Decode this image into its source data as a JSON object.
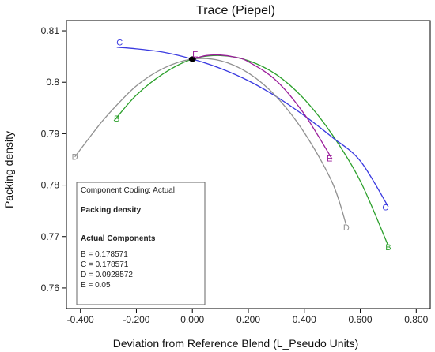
{
  "chart_data": {
    "type": "line",
    "title": "Trace (Piepel)",
    "xlabel": "Deviation from Reference Blend (L_Pseudo Units)",
    "ylabel": "Packing density",
    "xlim": [
      -0.45,
      0.85
    ],
    "ylim": [
      0.756,
      0.812
    ],
    "x_ticks": [
      -0.4,
      -0.2,
      0.0,
      0.2,
      0.4,
      0.6,
      0.8
    ],
    "x_tick_labels": [
      "-0.400",
      "-0.200",
      "0.000",
      "0.200",
      "0.400",
      "0.600",
      "0.800"
    ],
    "y_ticks": [
      0.76,
      0.77,
      0.78,
      0.79,
      0.8,
      0.81
    ],
    "y_tick_labels": [
      "0.76",
      "0.77",
      "0.78",
      "0.79",
      "0.8",
      "0.81"
    ],
    "grid": false,
    "reference_point": {
      "x": 0.0,
      "y": 0.8045
    },
    "series": [
      {
        "name": "B",
        "color": "#2ca02c",
        "x": [
          -0.28,
          -0.2,
          -0.1,
          0.0,
          0.1,
          0.2,
          0.3,
          0.4,
          0.5,
          0.6,
          0.7
        ],
        "y": [
          0.7925,
          0.7975,
          0.8018,
          0.8045,
          0.8052,
          0.8042,
          0.8015,
          0.7967,
          0.7898,
          0.7808,
          0.7682
        ],
        "marker_labels": [
          {
            "x": -0.27,
            "y": 0.793
          },
          {
            "x": 0.7,
            "y": 0.768
          }
        ]
      },
      {
        "name": "C",
        "color": "#3a3ae0",
        "x": [
          -0.27,
          -0.2,
          -0.1,
          0.0,
          0.1,
          0.2,
          0.3,
          0.4,
          0.5,
          0.6,
          0.7
        ],
        "y": [
          0.8068,
          0.8065,
          0.8058,
          0.8045,
          0.8027,
          0.8003,
          0.7972,
          0.7935,
          0.7893,
          0.7847,
          0.7758
        ],
        "marker_labels": [
          {
            "x": -0.26,
            "y": 0.8078
          },
          {
            "x": 0.69,
            "y": 0.7757
          }
        ]
      },
      {
        "name": "D",
        "color": "#909090",
        "x": [
          -0.42,
          -0.35,
          -0.3,
          -0.2,
          -0.1,
          0.0,
          0.1,
          0.2,
          0.3,
          0.4,
          0.5,
          0.55
        ],
        "y": [
          0.7855,
          0.7905,
          0.7938,
          0.7993,
          0.8028,
          0.8045,
          0.8042,
          0.8018,
          0.7972,
          0.7902,
          0.7805,
          0.7722
        ],
        "marker_labels": [
          {
            "x": -0.42,
            "y": 0.7855
          },
          {
            "x": 0.55,
            "y": 0.7718
          }
        ]
      },
      {
        "name": "E",
        "color": "#9b1e9b",
        "x": [
          0.0,
          0.05,
          0.1,
          0.15,
          0.2,
          0.3,
          0.4,
          0.5
        ],
        "y": [
          0.8045,
          0.8052,
          0.8053,
          0.8049,
          0.804,
          0.8003,
          0.7938,
          0.785
        ],
        "marker_labels": [
          {
            "x": 0.01,
            "y": 0.8055
          },
          {
            "x": 0.49,
            "y": 0.7852
          }
        ]
      }
    ],
    "legend": {
      "placement": "bottom-left",
      "coding": "Component Coding: Actual",
      "response": "Packing density",
      "components_header": "Actual Components",
      "entries": [
        {
          "text": "B = 0.178571",
          "color": "#2ca02c"
        },
        {
          "text": "C = 0.178571",
          "color": "#3a3ae0"
        },
        {
          "text": "D = 0.0928572",
          "color": "#909090"
        },
        {
          "text": "E = 0.05",
          "color": "#9b1e9b"
        }
      ]
    }
  }
}
